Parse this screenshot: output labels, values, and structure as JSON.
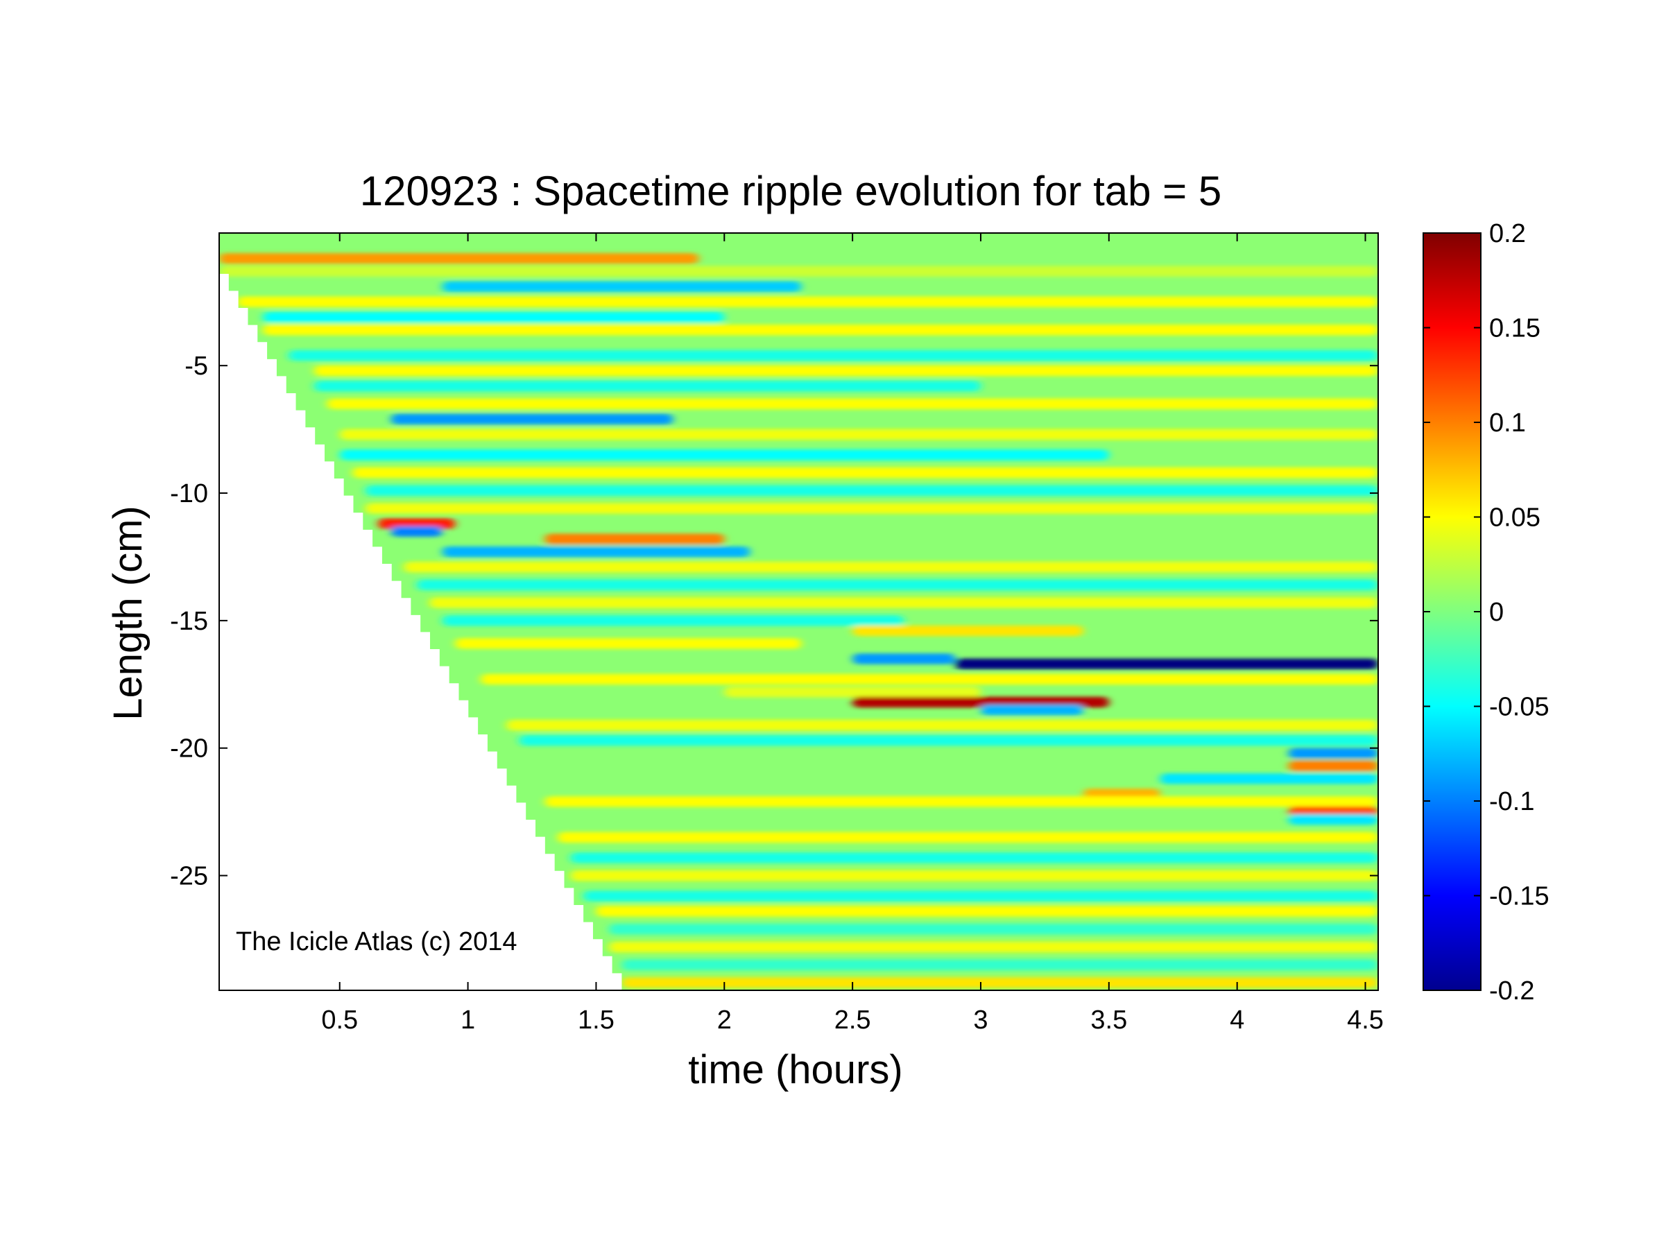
{
  "chart_data": {
    "type": "heatmap",
    "title": "120923 : Spacetime ripple evolution for tab = 5",
    "xlabel": "time (hours)",
    "ylabel": "Length (cm)",
    "xlim": [
      0.03,
      4.55
    ],
    "ylim": [
      -29.5,
      0.2
    ],
    "xticks": [
      {
        "value": 0.5,
        "label": "0.5"
      },
      {
        "value": 1,
        "label": "1"
      },
      {
        "value": 1.5,
        "label": "1.5"
      },
      {
        "value": 2,
        "label": "2"
      },
      {
        "value": 2.5,
        "label": "2.5"
      },
      {
        "value": 3,
        "label": "3"
      },
      {
        "value": 3.5,
        "label": "3.5"
      },
      {
        "value": 4,
        "label": "4"
      },
      {
        "value": 4.5,
        "label": "4.5"
      }
    ],
    "yticks": [
      {
        "value": -5,
        "label": "-5"
      },
      {
        "value": -10,
        "label": "-10"
      },
      {
        "value": -15,
        "label": "-15"
      },
      {
        "value": -20,
        "label": "-20"
      },
      {
        "value": -25,
        "label": "-25"
      }
    ],
    "colorbar": {
      "colormap": "jet",
      "clim": [
        -0.2,
        0.2
      ],
      "ticks": [
        {
          "value": 0.2,
          "label": "0.2"
        },
        {
          "value": 0.15,
          "label": "0.15"
        },
        {
          "value": 0.1,
          "label": "0.1"
        },
        {
          "value": 0.05,
          "label": "0.05"
        },
        {
          "value": 0,
          "label": "0"
        },
        {
          "value": -0.05,
          "label": "-0.05"
        },
        {
          "value": -0.1,
          "label": "-0.1"
        },
        {
          "value": -0.15,
          "label": "-0.15"
        },
        {
          "value": -0.2,
          "label": "-0.2"
        }
      ]
    },
    "data_front": {
      "description": "white region: no data before the icicle tip reaches the given length",
      "points": [
        [
          0.03,
          -1.4
        ],
        [
          1.6,
          -29.5
        ]
      ]
    },
    "background_value": 0.005,
    "bands": [
      {
        "y": -0.8,
        "value": 0.09,
        "x0": 0.03,
        "x1": 1.9
      },
      {
        "y": -1.3,
        "value": 0.03,
        "x0": 0.03,
        "x1": 4.55
      },
      {
        "y": -1.9,
        "value": -0.07,
        "x0": 0.9,
        "x1": 2.3
      },
      {
        "y": -2.5,
        "value": 0.05,
        "x0": 0.1,
        "x1": 4.55
      },
      {
        "y": -3.1,
        "value": -0.05,
        "x0": 0.2,
        "x1": 2.0
      },
      {
        "y": -3.6,
        "value": 0.05,
        "x0": 0.2,
        "x1": 4.55
      },
      {
        "y": -4.6,
        "value": -0.04,
        "x0": 0.3,
        "x1": 4.55
      },
      {
        "y": -5.2,
        "value": 0.05,
        "x0": 0.4,
        "x1": 4.55
      },
      {
        "y": -5.8,
        "value": -0.04,
        "x0": 0.4,
        "x1": 3.0
      },
      {
        "y": -6.5,
        "value": 0.05,
        "x0": 0.45,
        "x1": 4.55
      },
      {
        "y": -7.1,
        "value": -0.09,
        "x0": 0.7,
        "x1": 1.8
      },
      {
        "y": -7.7,
        "value": 0.045,
        "x0": 0.5,
        "x1": 4.55
      },
      {
        "y": -8.5,
        "value": -0.05,
        "x0": 0.5,
        "x1": 3.5
      },
      {
        "y": -9.2,
        "value": 0.05,
        "x0": 0.55,
        "x1": 4.55
      },
      {
        "y": -9.9,
        "value": -0.04,
        "x0": 0.6,
        "x1": 4.55
      },
      {
        "y": -10.6,
        "value": 0.045,
        "x0": 0.6,
        "x1": 4.55
      },
      {
        "y": -11.2,
        "value": 0.14,
        "x0": 0.65,
        "x1": 0.95
      },
      {
        "y": -11.5,
        "value": -0.1,
        "x0": 0.7,
        "x1": 0.9
      },
      {
        "y": -11.8,
        "value": 0.1,
        "x0": 1.3,
        "x1": 2.0
      },
      {
        "y": -12.3,
        "value": -0.08,
        "x0": 0.9,
        "x1": 2.1
      },
      {
        "y": -12.9,
        "value": 0.045,
        "x0": 0.75,
        "x1": 4.55
      },
      {
        "y": -13.6,
        "value": -0.04,
        "x0": 0.8,
        "x1": 4.55
      },
      {
        "y": -14.3,
        "value": 0.045,
        "x0": 0.85,
        "x1": 4.55
      },
      {
        "y": -15.0,
        "value": -0.04,
        "x0": 0.9,
        "x1": 2.7
      },
      {
        "y": -15.4,
        "value": 0.06,
        "x0": 2.5,
        "x1": 3.4
      },
      {
        "y": -15.9,
        "value": 0.05,
        "x0": 0.95,
        "x1": 2.3
      },
      {
        "y": -16.5,
        "value": -0.09,
        "x0": 2.5,
        "x1": 2.9
      },
      {
        "y": -16.7,
        "value": -0.2,
        "x0": 2.9,
        "x1": 4.55
      },
      {
        "y": -17.3,
        "value": 0.05,
        "x0": 1.05,
        "x1": 4.55
      },
      {
        "y": -17.8,
        "value": 0.04,
        "x0": 2.0,
        "x1": 3.0
      },
      {
        "y": -18.2,
        "value": 0.18,
        "x0": 2.5,
        "x1": 3.5
      },
      {
        "y": -18.5,
        "value": -0.08,
        "x0": 3.0,
        "x1": 3.4
      },
      {
        "y": -19.1,
        "value": 0.045,
        "x0": 1.15,
        "x1": 4.55
      },
      {
        "y": -19.7,
        "value": -0.04,
        "x0": 1.2,
        "x1": 4.55
      },
      {
        "y": -20.2,
        "value": -0.09,
        "x0": 4.2,
        "x1": 4.55
      },
      {
        "y": -20.7,
        "value": 0.1,
        "x0": 4.2,
        "x1": 4.55
      },
      {
        "y": -21.2,
        "value": -0.06,
        "x0": 3.7,
        "x1": 4.55
      },
      {
        "y": -21.8,
        "value": 0.08,
        "x0": 3.4,
        "x1": 3.7
      },
      {
        "y": -22.1,
        "value": 0.05,
        "x0": 1.3,
        "x1": 4.55
      },
      {
        "y": -22.5,
        "value": 0.12,
        "x0": 4.2,
        "x1": 4.55
      },
      {
        "y": -22.8,
        "value": -0.06,
        "x0": 4.2,
        "x1": 4.55
      },
      {
        "y": -23.5,
        "value": 0.05,
        "x0": 1.35,
        "x1": 4.55
      },
      {
        "y": -24.3,
        "value": -0.04,
        "x0": 1.4,
        "x1": 4.55
      },
      {
        "y": -25.0,
        "value": 0.045,
        "x0": 1.4,
        "x1": 4.55
      },
      {
        "y": -25.8,
        "value": -0.04,
        "x0": 1.45,
        "x1": 4.55
      },
      {
        "y": -26.4,
        "value": 0.05,
        "x0": 1.5,
        "x1": 4.55
      },
      {
        "y": -27.1,
        "value": -0.03,
        "x0": 1.55,
        "x1": 4.55
      },
      {
        "y": -27.8,
        "value": 0.045,
        "x0": 1.55,
        "x1": 4.55
      },
      {
        "y": -28.5,
        "value": -0.03,
        "x0": 1.6,
        "x1": 4.55
      },
      {
        "y": -29.2,
        "value": 0.06,
        "x0": 1.6,
        "x1": 4.55
      }
    ]
  },
  "watermark": "The Icicle Atlas (c) 2014"
}
